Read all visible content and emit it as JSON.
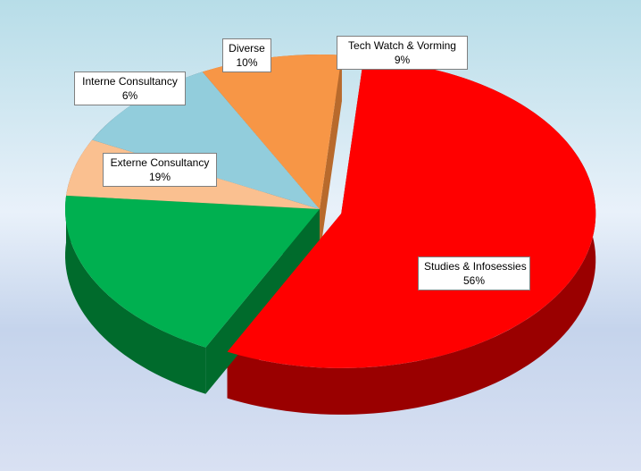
{
  "chart_data": {
    "type": "pie",
    "title": "",
    "slices": [
      {
        "label": "Studies & Infosessies",
        "value": 56,
        "value_label": "56%",
        "color": "#ff0000",
        "side": "#9a0000"
      },
      {
        "label": "Externe Consultancy",
        "value": 19,
        "value_label": "19%",
        "color": "#00b050",
        "side": "#006b2c"
      },
      {
        "label": "Interne Consultancy",
        "value": 6,
        "value_label": "6%",
        "color": "#fac090",
        "side": "#6e4a34"
      },
      {
        "label": "Diverse",
        "value": 10,
        "value_label": "10%",
        "color": "#92cddc",
        "side": "#2f4f5a"
      },
      {
        "label": "Tech Watch & Vorming",
        "value": 9,
        "value_label": "9%",
        "color": "#f79646",
        "side": "#b86a2c"
      }
    ],
    "three_d": true,
    "exploded": true,
    "legend": "none"
  }
}
